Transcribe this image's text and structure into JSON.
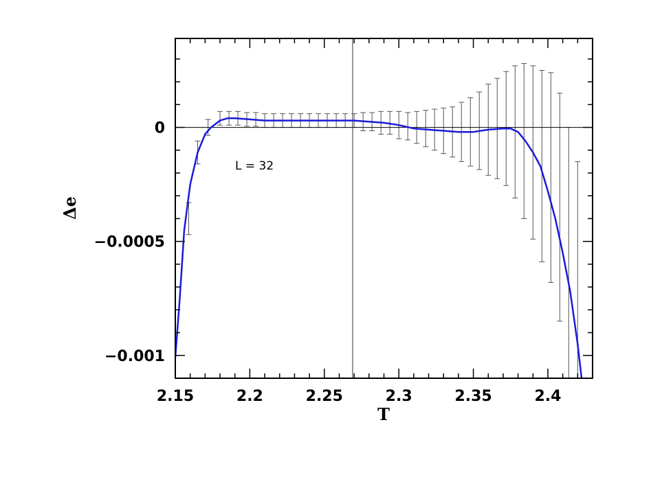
{
  "chart_data": {
    "type": "line",
    "xlabel": "T",
    "ylabel": "Δe",
    "xlim": [
      2.15,
      2.43
    ],
    "ylim": [
      -0.0011,
      0.00039
    ],
    "x_ticks": [
      2.15,
      2.2,
      2.25,
      2.3,
      2.35,
      2.4
    ],
    "x_tick_labels": [
      "2.15",
      "2.2",
      "2.25",
      "2.3",
      "2.35",
      "2.4"
    ],
    "y_ticks": [
      0,
      -0.0005,
      -0.001
    ],
    "y_tick_labels": [
      "0",
      "−0.0005",
      "−0.001"
    ],
    "reference_lines": {
      "horizontal_y": 0,
      "vertical_x": 2.269
    },
    "annotation": "L = 32",
    "grid": false,
    "colors": {
      "curve": "#1a1adb",
      "errorbars": "#555555",
      "axes": "#000000"
    },
    "series": [
      {
        "x": [
          2.15,
          2.153,
          2.156,
          2.16,
          2.165,
          2.17,
          2.174,
          2.18,
          2.185,
          2.19,
          2.2,
          2.21,
          2.22,
          2.23,
          2.24,
          2.25,
          2.26,
          2.27,
          2.28,
          2.29,
          2.3,
          2.31,
          2.32,
          2.33,
          2.34,
          2.35,
          2.36,
          2.37,
          2.375,
          2.38,
          2.385,
          2.39,
          2.395,
          2.4,
          2.405,
          2.41,
          2.415,
          2.42,
          2.423
        ],
        "y": [
          -0.00101,
          -0.00075,
          -0.00045,
          -0.00025,
          -0.00011,
          -3e-05,
          0.0,
          3e-05,
          4e-05,
          4e-05,
          3.5e-05,
          3e-05,
          3e-05,
          3e-05,
          3e-05,
          3e-05,
          3e-05,
          3e-05,
          2.5e-05,
          2e-05,
          1e-05,
          -5e-06,
          -1e-05,
          -1.5e-05,
          -2e-05,
          -2e-05,
          -1e-05,
          -5e-06,
          -5e-06,
          -2e-05,
          -6e-05,
          -0.00011,
          -0.00017,
          -0.00028,
          -0.0004,
          -0.00055,
          -0.00072,
          -0.00095,
          -0.00112
        ]
      },
      {
        "x": [
          2.159,
          2.165,
          2.172,
          2.18,
          2.186,
          2.192,
          2.198,
          2.204,
          2.21,
          2.216,
          2.222,
          2.228,
          2.234,
          2.24,
          2.246,
          2.252,
          2.258,
          2.264,
          2.27,
          2.276,
          2.282,
          2.288,
          2.294,
          2.3,
          2.306,
          2.312,
          2.318,
          2.324,
          2.33,
          2.336,
          2.342,
          2.348,
          2.354,
          2.36,
          2.366,
          2.372,
          2.378,
          2.384,
          2.39,
          2.396,
          2.402,
          2.408,
          2.414,
          2.42
        ],
        "y": [
          -0.0004,
          -0.00011,
          0.0,
          4e-05,
          4e-05,
          4e-05,
          3.5e-05,
          3.5e-05,
          3e-05,
          3e-05,
          3e-05,
          3e-05,
          3e-05,
          3e-05,
          3e-05,
          3e-05,
          3e-05,
          3e-05,
          3e-05,
          2.5e-05,
          2.5e-05,
          2e-05,
          2e-05,
          1e-05,
          5e-06,
          0.0,
          -5e-06,
          -1e-05,
          -1.5e-05,
          -2e-05,
          -2e-05,
          -2e-05,
          -1.5e-05,
          -1e-05,
          -5e-06,
          -5e-06,
          -2e-05,
          -6e-05,
          -0.00011,
          -0.00017,
          -0.00022,
          -0.00035,
          -0.00055,
          -0.00075
        ],
        "error": [
          7e-05,
          5e-05,
          3.5e-05,
          3e-05,
          3e-05,
          3e-05,
          3e-05,
          3e-05,
          3e-05,
          3e-05,
          3e-05,
          3e-05,
          3e-05,
          3e-05,
          3e-05,
          3e-05,
          3e-05,
          3e-05,
          3e-05,
          4e-05,
          4e-05,
          5e-05,
          5e-05,
          6e-05,
          6e-05,
          7e-05,
          8e-05,
          9e-05,
          0.0001,
          0.00011,
          0.00013,
          0.00015,
          0.00017,
          0.0002,
          0.00022,
          0.00025,
          0.00029,
          0.00034,
          0.00038,
          0.00042,
          0.00046,
          0.0005,
          0.00055,
          0.0006
        ]
      }
    ]
  }
}
